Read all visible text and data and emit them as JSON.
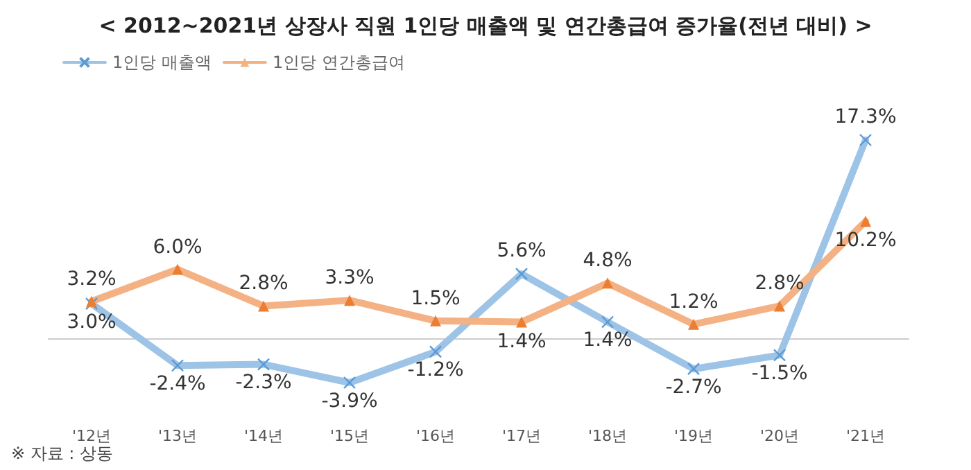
{
  "chart_data": {
    "type": "line",
    "title": "< 2012~2021년 상장사 직원 1인당 매출액 및 연간총급여 증가율(전년 대비) >",
    "categories": [
      "'12년",
      "'13년",
      "'14년",
      "'15년",
      "'16년",
      "'17년",
      "'18년",
      "'19년",
      "'20년",
      "'21년"
    ],
    "series": [
      {
        "name": "1인당 매출액",
        "color": "#9dc3e6",
        "marker": "cross",
        "values": [
          3.0,
          -2.4,
          -2.3,
          -3.9,
          -1.2,
          5.6,
          1.4,
          -2.7,
          -1.5,
          17.3
        ],
        "value_labels": [
          "3.0%",
          "-2.4%",
          "-2.3%",
          "-3.9%",
          "-1.2%",
          "5.6%",
          "1.4%",
          "-2.7%",
          "-1.5%",
          "17.3%"
        ]
      },
      {
        "name": "1인당 연간총급여",
        "color": "#f4b183",
        "marker": "triangle",
        "values": [
          3.2,
          6.0,
          2.8,
          3.3,
          1.5,
          1.4,
          4.8,
          1.2,
          2.8,
          10.2
        ],
        "value_labels": [
          "3.2%",
          "6.0%",
          "2.8%",
          "3.3%",
          "1.5%",
          "1.4%",
          "4.8%",
          "1.2%",
          "2.8%",
          "10.2%"
        ]
      }
    ],
    "legend": "top left",
    "grid": false,
    "line_style": "solid",
    "annotations": [
      "※ 자료 : 상동"
    ]
  }
}
